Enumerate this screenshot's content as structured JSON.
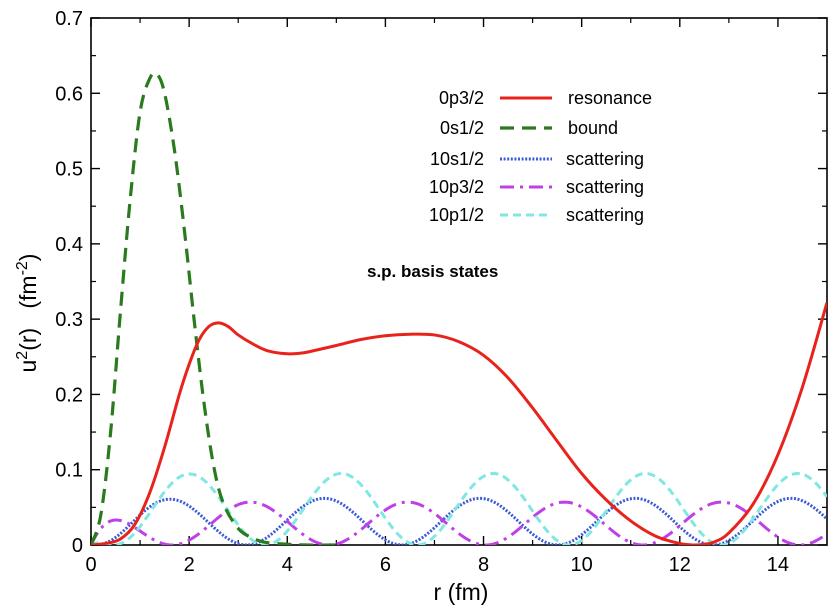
{
  "chart_data": {
    "type": "line",
    "title": "",
    "xlabel": "r (fm)",
    "ylabel_main": "u",
    "ylabel_sup1": "2",
    "ylabel_mid": "(r)   (fm",
    "ylabel_sup2": "-2",
    "ylabel_end": ")",
    "xlim": [
      0,
      15
    ],
    "ylim": [
      0,
      0.7
    ],
    "xticks": [
      0,
      2,
      4,
      6,
      8,
      10,
      12,
      14
    ],
    "xtick_labels": [
      "0",
      "2",
      "4",
      "6",
      "8",
      "10",
      "12",
      "14"
    ],
    "yticks": [
      0,
      0.1,
      0.2,
      0.3,
      0.4,
      0.5,
      0.6,
      0.7
    ],
    "ytick_labels": [
      "0",
      "0.1",
      "0.2",
      "0.3",
      "0.4",
      "0.5",
      "0.6",
      "0.7"
    ],
    "annotation": "s.p. basis states",
    "legend_position": "upper-right",
    "series": [
      {
        "name": "0p3/2",
        "state_label": "0p3/2",
        "type_label": "resonance",
        "color": "#e8231c",
        "style": "solid",
        "x": [
          0,
          0.3,
          0.6,
          0.9,
          1.2,
          1.5,
          1.8,
          2.0,
          2.2,
          2.4,
          2.6,
          2.8,
          3.0,
          3.3,
          3.6,
          4.0,
          4.3,
          4.6,
          5.0,
          5.5,
          6.0,
          6.5,
          7.0,
          7.5,
          8.0,
          8.5,
          9.0,
          9.5,
          10.0,
          10.5,
          11.0,
          11.5,
          12.0,
          12.3,
          12.5,
          12.7,
          13.0,
          13.5,
          14.0,
          14.5,
          15.0
        ],
        "y": [
          0,
          0.002,
          0.008,
          0.028,
          0.07,
          0.13,
          0.2,
          0.24,
          0.272,
          0.29,
          0.295,
          0.29,
          0.279,
          0.267,
          0.258,
          0.254,
          0.255,
          0.259,
          0.265,
          0.273,
          0.278,
          0.28,
          0.279,
          0.27,
          0.252,
          0.222,
          0.182,
          0.138,
          0.095,
          0.06,
          0.032,
          0.012,
          0.002,
          0.0,
          0.001,
          0.004,
          0.016,
          0.055,
          0.12,
          0.21,
          0.322
        ]
      },
      {
        "name": "0s1/2",
        "state_label": "0s1/2",
        "type_label": "bound",
        "color": "#2a7a1e",
        "style": "dashed",
        "x": [
          0,
          0.2,
          0.4,
          0.6,
          0.8,
          1.0,
          1.2,
          1.35,
          1.5,
          1.7,
          1.9,
          2.1,
          2.3,
          2.5,
          2.7,
          3.0,
          3.3,
          3.6,
          4.0,
          4.4,
          5.0
        ],
        "y": [
          0,
          0.04,
          0.15,
          0.31,
          0.46,
          0.575,
          0.62,
          0.625,
          0.6,
          0.525,
          0.42,
          0.3,
          0.19,
          0.105,
          0.055,
          0.022,
          0.009,
          0.003,
          0.001,
          0,
          0
        ]
      },
      {
        "name": "10s1/2",
        "state_label": "10s1/2",
        "type_label": "scattering",
        "color": "#3b5bd6",
        "style": "dotted",
        "amplitude": 0.062,
        "period_half": 3.17,
        "phase": 0.0
      },
      {
        "name": "10p3/2",
        "state_label": "10p3/2",
        "type_label": "scattering",
        "color": "#c040e8",
        "style": "dashdot",
        "amplitude": 0.057,
        "period_half": 3.2,
        "phase": 1.55
      },
      {
        "name": "10p1/2",
        "state_label": "10p1/2",
        "type_label": "scattering",
        "color": "#7fe8e2",
        "style": "dashed-light",
        "amplitude": 0.095,
        "period_half": 3.1,
        "phase": 2.65
      }
    ]
  }
}
